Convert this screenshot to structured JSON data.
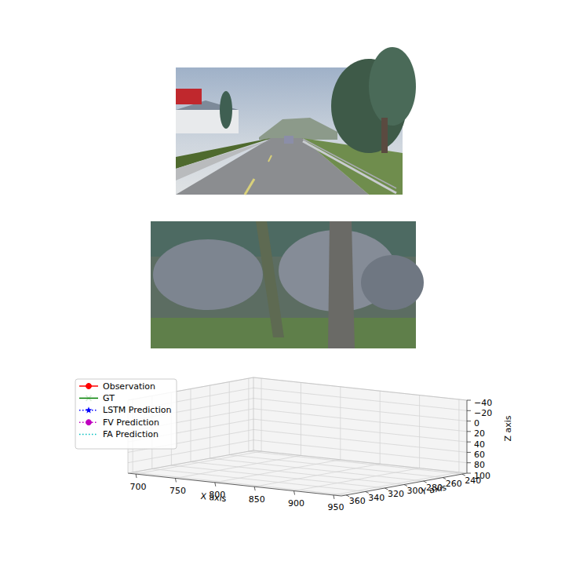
{
  "chart_data": {
    "type": "line3d",
    "x_label": "X axis",
    "y_label": "Y axis",
    "z_label": "Z axis",
    "xlim": [
      690,
      960
    ],
    "xticks": [
      700,
      750,
      800,
      850,
      900,
      950
    ],
    "ylim": [
      365,
      235
    ],
    "yticks": [
      360,
      340,
      320,
      300,
      280,
      260,
      240
    ],
    "zlim": [
      100,
      -40
    ],
    "zticks": [
      {
        "value": -40,
        "label": "−40"
      },
      {
        "value": -20,
        "label": "−20"
      },
      0,
      20,
      40,
      60,
      80,
      100
    ],
    "grid": true,
    "legend": "upper left",
    "series": [
      {
        "name": "Observation",
        "color": "#ff0000",
        "marker": "circle",
        "line_style": "solid",
        "values": []
      },
      {
        "name": "GT",
        "color": "#008000",
        "marker": "x",
        "line_style": "solid",
        "values": []
      },
      {
        "name": "LSTM Prediction",
        "color": "#0000ff",
        "marker": "star",
        "line_style": "dotted",
        "values": []
      },
      {
        "name": "FV Prediction",
        "color": "#bf00bf",
        "marker": "circle",
        "line_style": "dotted",
        "values": []
      },
      {
        "name": "FA Prediction",
        "color": "#00bfbf",
        "marker": "none",
        "line_style": "dotted",
        "values": []
      }
    ]
  }
}
